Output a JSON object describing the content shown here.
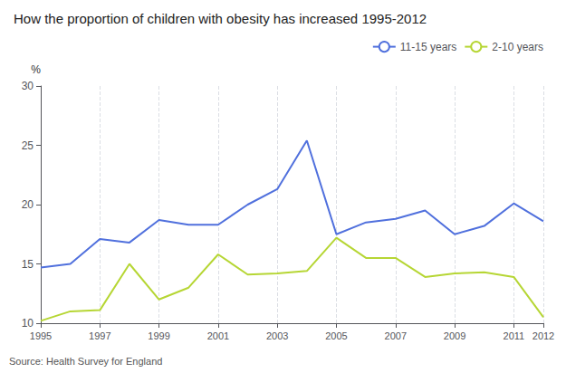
{
  "chart_data": {
    "type": "line",
    "title": "How the proportion of children with obesity has increased 1995-2012",
    "ylabel": "%",
    "annotations": [
      "Source: Health Survey for England"
    ],
    "x": [
      1995,
      1996,
      1997,
      1998,
      1999,
      2000,
      2001,
      2002,
      2003,
      2004,
      2005,
      2006,
      2007,
      2008,
      2009,
      2010,
      2011,
      2012
    ],
    "series": [
      {
        "name": "11-15 years",
        "values": [
          14.7,
          15.0,
          17.1,
          16.8,
          18.7,
          18.3,
          18.3,
          20.0,
          21.3,
          25.4,
          17.5,
          18.5,
          18.8,
          19.5,
          17.5,
          18.2,
          20.1,
          18.6
        ]
      },
      {
        "name": "2-10 years",
        "values": [
          10.2,
          11.0,
          11.1,
          15.0,
          12.0,
          13.0,
          15.8,
          14.1,
          14.2,
          14.4,
          17.2,
          15.5,
          15.5,
          13.9,
          14.2,
          14.3,
          13.9,
          10.5
        ]
      }
    ],
    "xlim": [
      1995,
      2012
    ],
    "xticks": [
      1995,
      1997,
      1999,
      2001,
      2003,
      2005,
      2007,
      2009,
      2011,
      2012
    ],
    "ylim": [
      10,
      30
    ],
    "yticks": [
      10,
      15,
      20,
      25,
      30
    ],
    "grid": true,
    "legend": "upper right"
  }
}
